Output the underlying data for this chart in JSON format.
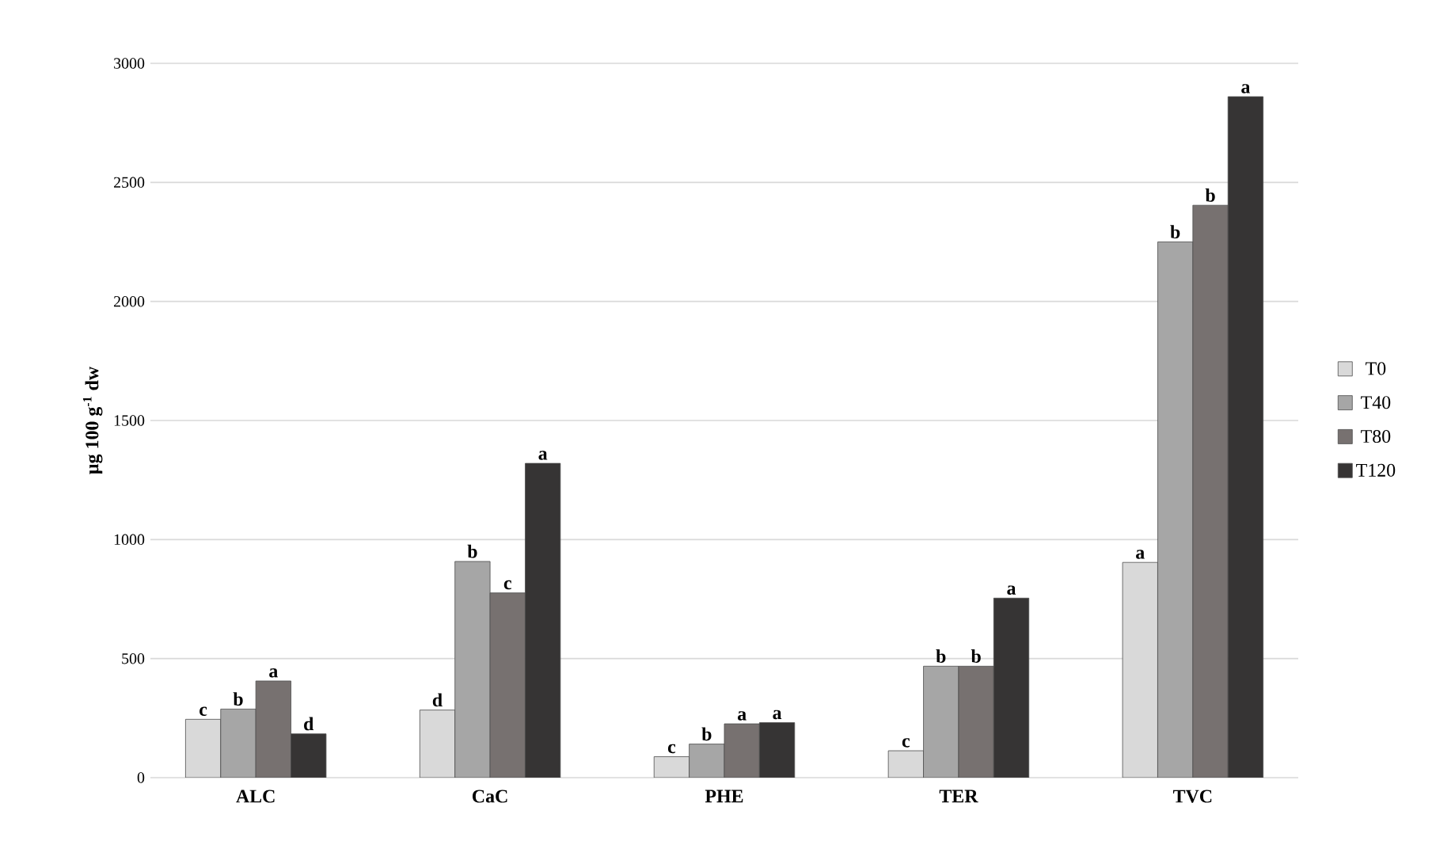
{
  "chart_data": {
    "type": "bar",
    "ylabel": "µg 100 g$^{-1}$ dw",
    "categories": [
      "ALC",
      "CaC",
      "PHE",
      "TER",
      "TVC"
    ],
    "series": [
      {
        "name": "T0",
        "color": "#d9d9d9",
        "values": [
          245,
          284,
          88,
          113,
          904
        ],
        "value_labels": [
          "c",
          "d",
          "c",
          "c",
          "a"
        ]
      },
      {
        "name": "T40",
        "color": "#a6a6a6",
        "values": [
          288,
          908,
          141,
          468,
          2250
        ],
        "value_labels": [
          "b",
          "b",
          "b",
          "b",
          "b"
        ]
      },
      {
        "name": "T80",
        "color": "#777170",
        "values": [
          406,
          776,
          226,
          468,
          2404
        ],
        "value_labels": [
          "a",
          "c",
          "a",
          "b",
          "b"
        ]
      },
      {
        "name": "T120",
        "color": "#363434",
        "values": [
          184,
          1320,
          231,
          754,
          2860
        ],
        "value_labels": [
          "d",
          "a",
          "a",
          "a",
          "a"
        ]
      }
    ],
    "ylim": [
      0,
      3000
    ],
    "yticks": [
      0,
      500,
      1000,
      1500,
      2000,
      2500,
      3000
    ],
    "grid": "y",
    "legend": "right"
  }
}
